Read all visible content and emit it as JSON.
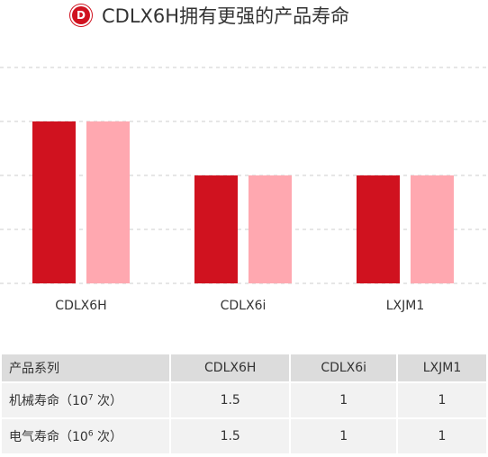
{
  "title": "CDLX6H拥有更强的产品寿命",
  "logo": "D",
  "chart_data": {
    "type": "bar",
    "categories": [
      "CDLX6H",
      "CDLX6i",
      "LXJM1"
    ],
    "series": [
      {
        "color": "#d0121f",
        "values": [
          1.5,
          1,
          1
        ]
      },
      {
        "color": "#ffa8b0",
        "values": [
          1.5,
          1,
          1
        ]
      }
    ],
    "ylim": [
      0,
      2
    ],
    "grid": true
  },
  "table": {
    "header": [
      "产品系列",
      "CDLX6H",
      "CDLX6i",
      "LXJM1"
    ],
    "rows": [
      [
        {
          "label_parts": [
            "机械寿命（10",
            "7",
            " 次）"
          ]
        },
        "1.5",
        "1",
        "1"
      ],
      [
        {
          "label_parts": [
            "电气寿命（10",
            "6",
            " 次）"
          ]
        },
        "1.5",
        "1",
        "1"
      ]
    ]
  }
}
